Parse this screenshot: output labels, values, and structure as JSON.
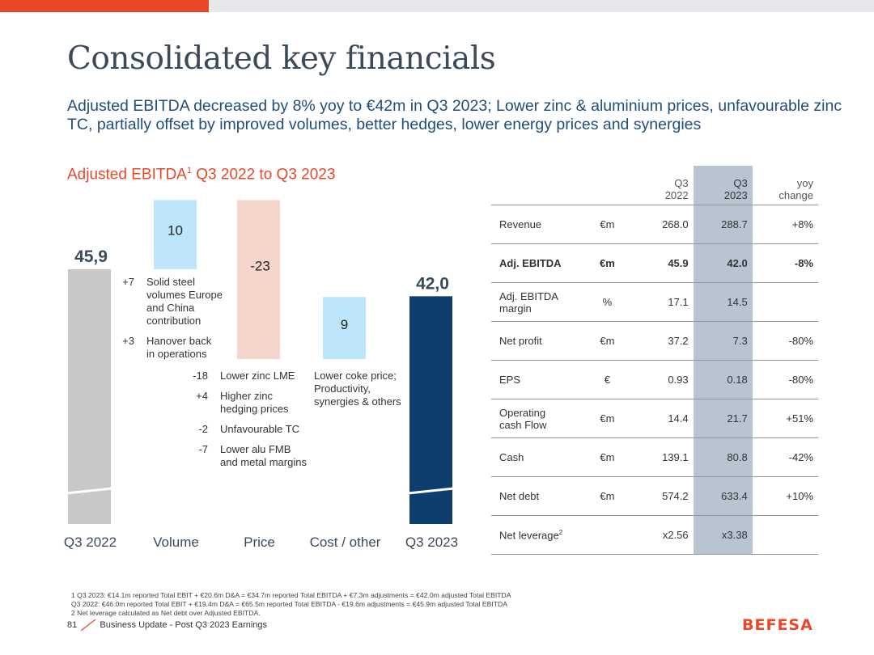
{
  "title": "Consolidated key financials",
  "subtitle": "Adjusted EBITDA decreased by 8% yoy to €42m in Q3 2023; Lower zinc & aluminium prices, unfavourable zinc TC, partially offset by improved volumes, better hedges, lower energy prices and synergies",
  "chart_title": {
    "main": "Adjusted EBITDA",
    "sup": "1",
    "rest": " Q3 2022 to Q3 2023"
  },
  "chart_data": {
    "type": "waterfall",
    "title": "Adjusted EBITDA1 Q3 2022 to Q3 2023",
    "categories": [
      "Q3 2022",
      "Volume",
      "Price",
      "Cost / other",
      "Q3 2023"
    ],
    "values": [
      45.9,
      10,
      -23,
      9,
      42.0
    ],
    "value_labels": [
      "45,9",
      "10",
      "-23",
      "9",
      "42,0"
    ],
    "colors": [
      "#c8c8c8",
      "#bde5fb",
      "#f6d5cd",
      "#bde5fb",
      "#0e3e6e"
    ],
    "axis_break": true,
    "ylim": [
      0,
      60
    ]
  },
  "notes": {
    "volume": [
      {
        "value": "+7",
        "text": "Solid steel\nvolumes Europe\nand China\ncontribution"
      },
      {
        "value": "+3",
        "text": "Hanover back\nin operations"
      }
    ],
    "price": [
      {
        "value": "-18",
        "text": "Lower zinc LME"
      },
      {
        "value": "+4",
        "text": "Higher zinc\nhedging prices"
      },
      {
        "value": "-2",
        "text": "Unfavourable TC"
      },
      {
        "value": "-7",
        "text": "Lower alu FMB\nand metal margins"
      }
    ],
    "cost": "Lower coke price;\nProductivity,\nsynergies & others"
  },
  "table": {
    "headers": [
      "",
      "",
      "Q3\n2022",
      "Q3\n2023",
      "yoy\nchange"
    ],
    "rows": [
      {
        "label": "Revenue",
        "unit": "€m",
        "q22": "268.0",
        "q23": "288.7",
        "yoy": "+8%",
        "bold": false
      },
      {
        "label": "Adj. EBITDA",
        "unit": "€m",
        "q22": "45.9",
        "q23": "42.0",
        "yoy": "-8%",
        "bold": true
      },
      {
        "label": "Adj. EBITDA\nmargin",
        "unit": "%",
        "q22": "17.1",
        "q23": "14.5",
        "yoy": "",
        "bold": false
      },
      {
        "label": "Net profit",
        "unit": "€m",
        "q22": "37.2",
        "q23": "7.3",
        "yoy": "-80%",
        "bold": false
      },
      {
        "label": "EPS",
        "unit": "€",
        "q22": "0.93",
        "q23": "0.18",
        "yoy": "-80%",
        "bold": false
      },
      {
        "label": "Operating\ncash Flow",
        "unit": "€m",
        "q22": "14.4",
        "q23": "21.7",
        "yoy": "+51%",
        "bold": false
      },
      {
        "label": "Cash",
        "unit": "€m",
        "q22": "139.1",
        "q23": "80.8",
        "yoy": "-42%",
        "bold": false
      },
      {
        "label": "Net debt",
        "unit": "€m",
        "q22": "574.2",
        "q23": "633.4",
        "yoy": "+10%",
        "bold": false
      },
      {
        "label": "Net leverage",
        "label_sup": "2",
        "unit": "",
        "q22": "x2.56",
        "q23": "x3.38",
        "yoy": "",
        "bold": false
      }
    ]
  },
  "footnotes": [
    "1  Q3 2023: €14.1m reported Total EBIT + €20.6m D&A = €34.7m reported Total EBITDA + €7.3m adjustments = €42.0m adjusted Total EBITDA",
    "    Q3 2022: €46.0m reported Total EBIT + €19.4m D&A = €65.5m reported Total EBITDA - €19.6m adjustments = €45.9m adjusted Total EBITDA",
    "2  Net leverage calculated as Net debt over Adjusted EBITDA."
  ],
  "footer": {
    "page": "81",
    "text": "Business Update - Post Q3 2023 Earnings"
  },
  "logo": "BEFESA"
}
